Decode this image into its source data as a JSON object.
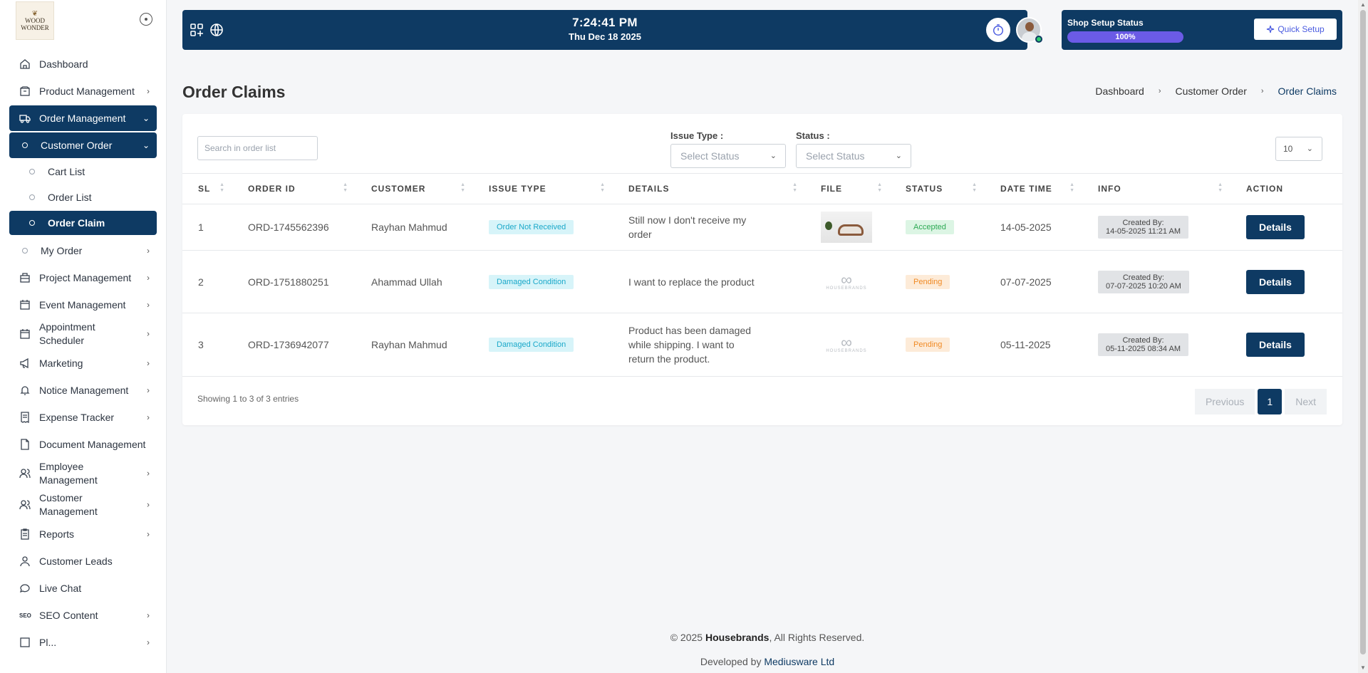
{
  "sidebar": {
    "logo_line1": "WOOD",
    "logo_line2": "WONDER",
    "items": [
      {
        "label": "Dashboard"
      },
      {
        "label": "Product Management"
      },
      {
        "label": "Order Management"
      },
      {
        "label": "Customer Order"
      },
      {
        "label": "Cart List"
      },
      {
        "label": "Order List"
      },
      {
        "label": "Order Claim"
      },
      {
        "label": "My Order"
      },
      {
        "label": "Project Management"
      },
      {
        "label": "Event Management"
      },
      {
        "label": "Appointment Scheduler"
      },
      {
        "label": "Marketing"
      },
      {
        "label": "Notice Management"
      },
      {
        "label": "Expense Tracker"
      },
      {
        "label": "Document Management"
      },
      {
        "label": "Employee Management"
      },
      {
        "label": "Customer Management"
      },
      {
        "label": "Reports"
      },
      {
        "label": "Customer Leads"
      },
      {
        "label": "Live Chat"
      },
      {
        "label": "SEO Content"
      },
      {
        "label": "Pl..."
      }
    ],
    "seo_abbr": "SEO"
  },
  "topbar": {
    "time": "7:24:41 PM",
    "date": "Thu Dec 18 2025"
  },
  "setup": {
    "label": "Shop Setup Status",
    "progress": "100%",
    "quick_setup": "Quick Setup"
  },
  "page": {
    "title": "Order Claims",
    "breadcrumb": [
      "Dashboard",
      "Customer Order",
      "Order Claims"
    ]
  },
  "filters": {
    "search_placeholder": "Search in order list",
    "issue_type_label": "Issue Type :",
    "issue_type_placeholder": "Select Status",
    "status_label": "Status :",
    "status_placeholder": "Select Status",
    "per_page": "10"
  },
  "table": {
    "headers": [
      "SL",
      "ORDER ID",
      "CUSTOMER",
      "ISSUE TYPE",
      "DETAILS",
      "FILE",
      "STATUS",
      "DATE TIME",
      "INFO",
      "ACTION"
    ],
    "rows": [
      {
        "sl": "1",
        "order_id": "ORD-1745562396",
        "customer": "Rayhan Mahmud",
        "issue_type": "Order Not Received",
        "details": "Still now I don't receive my order",
        "status": "Accepted",
        "date": "14-05-2025",
        "info_title": "Created By:",
        "info_time": "14-05-2025 11:21 AM",
        "action": "Details"
      },
      {
        "sl": "2",
        "order_id": "ORD-1751880251",
        "customer": "Ahammad Ullah",
        "issue_type": "Damaged Condition",
        "details": "I want to replace the product",
        "status": "Pending",
        "date": "07-07-2025",
        "info_title": "Created By:",
        "info_time": "07-07-2025 10:20 AM",
        "action": "Details"
      },
      {
        "sl": "3",
        "order_id": "ORD-1736942077",
        "customer": "Rayhan Mahmud",
        "issue_type": "Damaged Condition",
        "details": "Product has been damaged while shipping. I want to return the product.",
        "status": "Pending",
        "date": "05-11-2025",
        "info_title": "Created By:",
        "info_time": "05-11-2025 08:34 AM",
        "action": "Details"
      }
    ],
    "file_logo_text": "HOUSEBRANDS"
  },
  "pagination": {
    "showing": "Showing 1 to 3 of 3 entries",
    "previous": "Previous",
    "page": "1",
    "next": "Next"
  },
  "footer": {
    "copyright_prefix": "© 2025 ",
    "brand": "Housebrands",
    "copyright_suffix": ", All Rights Reserved.",
    "developed_by": "Developed by ",
    "developer": "Mediusware Ltd"
  },
  "colors": {
    "primary": "#0e3a63",
    "progress": "#6b5be6",
    "accepted": "#2eaa55",
    "pending": "#f08a24",
    "issue": "#1aa8c9"
  },
  "icons": [
    "home-icon",
    "box-icon",
    "truck-icon",
    "folder-icon",
    "calendar-icon",
    "megaphone-icon",
    "bell-icon",
    "receipt-icon",
    "document-icon",
    "users-icon",
    "clipboard-icon",
    "user-icon",
    "chat-icon",
    "apps-icon",
    "globe-icon",
    "timer-icon",
    "sparkle-icon"
  ]
}
